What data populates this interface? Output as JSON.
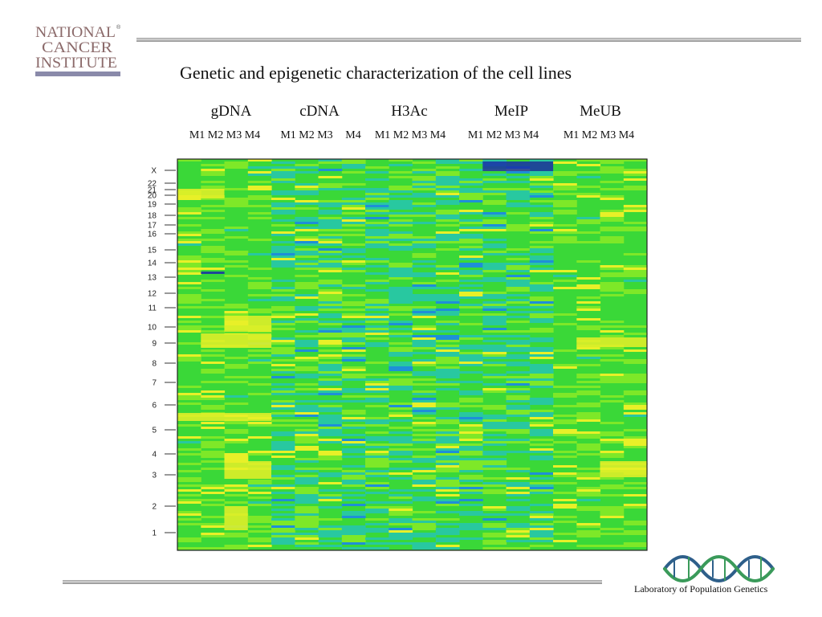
{
  "title": "Genetic and epigenetic characterization of the cell lines",
  "logos": {
    "nci_line1": "NATIONAL",
    "nci_line2": "CANCER",
    "nci_line3": "INSTITUTE",
    "nci_reg": "®",
    "lpg_name": "Laboratory of Population Genetics"
  },
  "colors": {
    "accent_blue": "#4a6ea8",
    "gray_bar": "#8a8aaa",
    "green_high": "#30d030",
    "yellow": "#f4f02a"
  },
  "chart_data": {
    "type": "heatmap",
    "groups": [
      "gDNA",
      "cDNA",
      "H3Ac",
      "MeIP",
      "MeUB"
    ],
    "lanes": [
      "M1",
      "M2",
      "M3",
      "M4",
      "M1",
      "M2",
      "M3",
      "M4",
      "M1",
      "M2",
      "M3",
      "M4",
      "M1",
      "M2",
      "M3",
      "M4",
      "M1",
      "M2",
      "M3",
      "M4"
    ],
    "lane_labels": [
      "M1 M2 M3 M4",
      "M1 M2 M3",
      "M4",
      "M1 M2 M3 M4",
      "M1 M2 M3 M4",
      "M1 M2 M3 M4"
    ],
    "yticks": [
      "X",
      "22",
      "21",
      "20",
      "19",
      "18",
      "17",
      "16",
      "15",
      "14",
      "13",
      "12",
      "11",
      "10",
      "9",
      "8",
      "7",
      "6",
      "5",
      "4",
      "3",
      "2",
      "1"
    ],
    "ylabel": "",
    "xlabel": "",
    "colormap": [
      "#1a2fa8",
      "#1e8fd8",
      "#28c8a0",
      "#38d838",
      "#7ee828",
      "#e8f028"
    ]
  }
}
